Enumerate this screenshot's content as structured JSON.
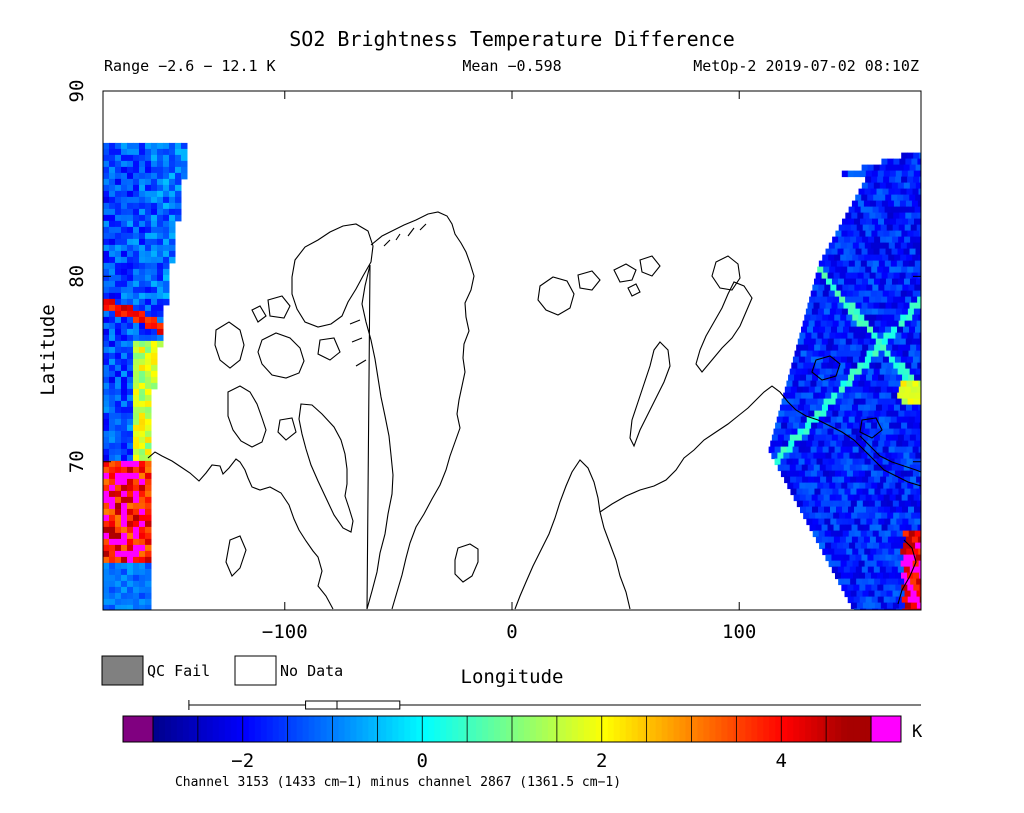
{
  "chart_data": {
    "type": "heatmap",
    "title": "SO2 Brightness Temperature Difference",
    "subtitle_left": "Range −2.6 − 12.1 K",
    "subtitle_center": "Mean −0.598",
    "subtitle_right": "MetOp-2 2019-07-02 08:10Z",
    "xlabel": "Longitude",
    "ylabel": "Latitude",
    "xlim": [
      -180,
      180
    ],
    "ylim": [
      62,
      90
    ],
    "xticks": [
      -100,
      0,
      100
    ],
    "yticks": [
      70,
      80,
      90
    ],
    "xtick_labels": [
      "−100",
      "0",
      "100"
    ],
    "yticks_labels": [
      "70",
      "80",
      "90"
    ],
    "legend": [
      {
        "label": "QC Fail",
        "color": "#808080"
      },
      {
        "label": "No Data",
        "color": "#ffffff"
      }
    ],
    "colorbar": {
      "min": -3,
      "max": 5,
      "ticks": [
        -2,
        0,
        2,
        4
      ],
      "tick_labels": [
        "−2",
        "0",
        "2",
        "4"
      ],
      "unit": "K",
      "under_color": "#800080",
      "over_color": "#ff00ff",
      "colors": [
        "#00008f",
        "#0000ff",
        "#0080ff",
        "#00ffff",
        "#80ff80",
        "#ffff00",
        "#ff8000",
        "#ff0000",
        "#800000"
      ],
      "box_range": [
        -1.3,
        -0.25
      ],
      "box_median": -0.95,
      "whisker_range": [
        -2.6,
        5.0
      ]
    },
    "caption": "Channel 3153 (1433 cm−1) minus channel 2867 (1361.5 cm−1)",
    "swaths": [
      {
        "name": "west",
        "lon_range": [
          -180,
          -150
        ],
        "lat_range": [
          62,
          87.2
        ],
        "dominant_value": -1.5,
        "anomaly_value": 4.5
      },
      {
        "name": "east",
        "lon_range": [
          115,
          180
        ],
        "lat_range": [
          62,
          87
        ],
        "dominant_value": -1.8,
        "anomaly_value": 4.5
      }
    ]
  }
}
